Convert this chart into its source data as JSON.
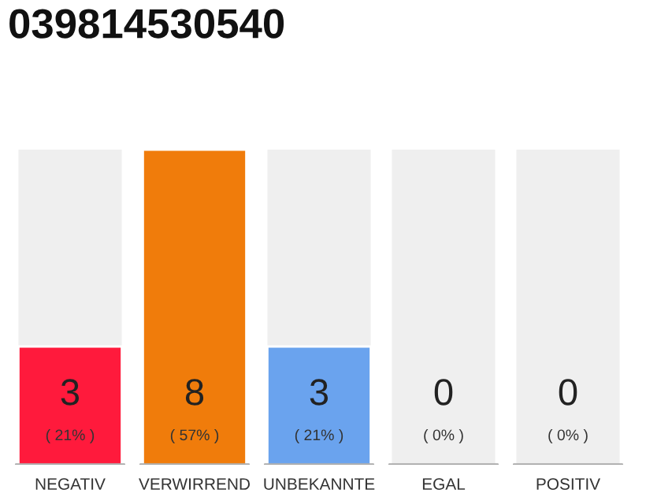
{
  "chart_data": {
    "type": "bar",
    "title": "039814530540",
    "categories": [
      "NEGATIV",
      "VERWIRREND",
      "UNBEKANNTE",
      "EGAL",
      "POSITIV"
    ],
    "values": [
      3,
      8,
      3,
      0,
      0
    ],
    "colors": [
      "#ff1a3c",
      "#f07c0b",
      "#6aa3ee",
      "#efefef",
      "#efefef"
    ],
    "ylim": [
      0,
      8
    ],
    "value_labels": [
      "3",
      "8",
      "3",
      "0",
      "0"
    ],
    "annotations": [
      "( 21% )",
      "( 57% )",
      "( 21% )",
      "( 0% )",
      "( 0% )"
    ],
    "grid": false,
    "legend": false
  }
}
